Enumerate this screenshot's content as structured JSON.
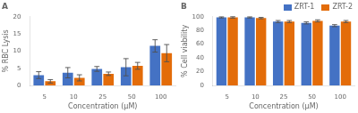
{
  "chart_data": [
    {
      "type": "bar",
      "title": "A",
      "xlabel": "Concentration (μM)",
      "ylabel": "% RBC Lysis",
      "categories": [
        "5",
        "10",
        "25",
        "50",
        "100"
      ],
      "series": [
        {
          "name": "ZRT-1",
          "color": "#4472C4",
          "values": [
            3.0,
            3.7,
            4.8,
            5.3,
            11.5
          ],
          "errors": [
            1.0,
            1.5,
            0.7,
            2.5,
            1.8
          ]
        },
        {
          "name": "ZRT-2",
          "color": "#E36C09",
          "values": [
            1.2,
            2.2,
            3.4,
            5.7,
            9.4
          ],
          "errors": [
            0.5,
            0.9,
            0.5,
            1.0,
            2.5
          ]
        }
      ],
      "ylim": [
        0,
        20
      ],
      "yticks": [
        0,
        5,
        10,
        15,
        20
      ],
      "grid": false,
      "legend": "upper right"
    },
    {
      "type": "bar",
      "title": "B",
      "xlabel": "Concentration (μM)",
      "ylabel": "% Cell viability",
      "categories": [
        "5",
        "10",
        "25",
        "50",
        "100"
      ],
      "series": [
        {
          "name": "ZRT-1",
          "color": "#4472C4",
          "values": [
            99,
            99,
            93,
            91,
            87
          ],
          "errors": [
            0.8,
            0.8,
            1.5,
            1.5,
            1.5
          ]
        },
        {
          "name": "ZRT-2",
          "color": "#E36C09",
          "values": [
            99,
            98,
            93,
            94,
            93
          ],
          "errors": [
            1.0,
            1.0,
            1.5,
            1.5,
            1.5
          ]
        }
      ],
      "ylim": [
        0,
        100
      ],
      "yticks": [
        0,
        20,
        40,
        60,
        80,
        100
      ],
      "grid": false
    }
  ]
}
